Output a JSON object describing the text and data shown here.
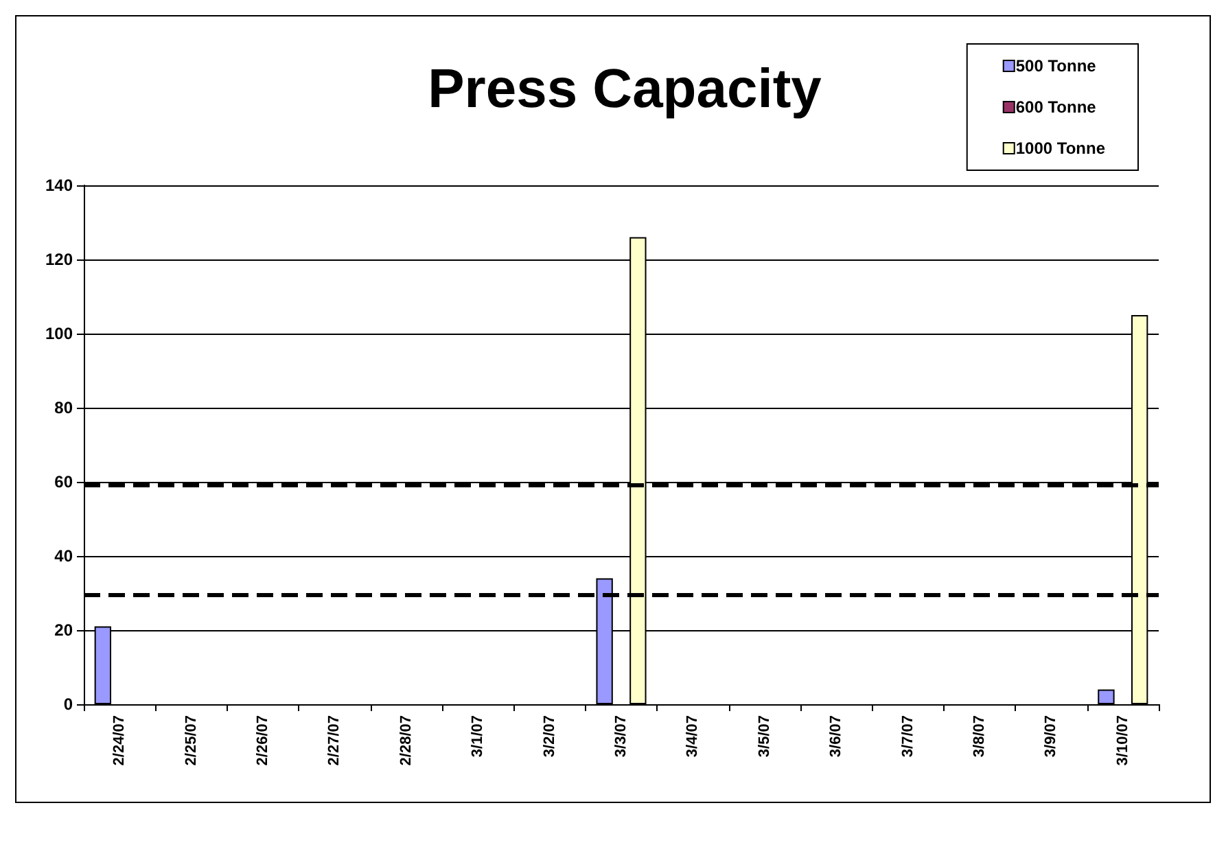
{
  "chart_data": {
    "type": "bar",
    "title": "Press Capacity",
    "categories": [
      "2/24/07",
      "2/25/07",
      "2/26/07",
      "2/27/07",
      "2/28/07",
      "3/1/07",
      "3/2/07",
      "3/3/07",
      "3/4/07",
      "3/5/07",
      "3/6/07",
      "3/7/07",
      "3/8/07",
      "3/9/07",
      "3/10/07"
    ],
    "series": [
      {
        "name": "500 Tonne",
        "color": "#9999ff",
        "values": [
          21,
          null,
          null,
          null,
          null,
          null,
          null,
          34,
          null,
          null,
          null,
          null,
          null,
          null,
          4
        ]
      },
      {
        "name": "600 Tonne",
        "color": "#993366",
        "values": [
          null,
          null,
          null,
          null,
          null,
          null,
          null,
          null,
          null,
          null,
          null,
          null,
          null,
          null,
          null
        ]
      },
      {
        "name": "1000 Tonne",
        "color": "#ffffcc",
        "values": [
          null,
          null,
          null,
          null,
          null,
          null,
          null,
          126,
          null,
          null,
          null,
          null,
          null,
          null,
          105
        ]
      }
    ],
    "ylim": [
      0,
      140
    ],
    "yticks": [
      0,
      20,
      40,
      60,
      80,
      100,
      120,
      140
    ],
    "grid": "y",
    "legend": "top right",
    "ref_lines": [
      {
        "axis": "y",
        "value": 59,
        "color": "#000000",
        "line_style": "dashed"
      },
      {
        "axis": "y",
        "value": 29.5,
        "color": "#000000",
        "line_style": "dashed"
      }
    ]
  }
}
